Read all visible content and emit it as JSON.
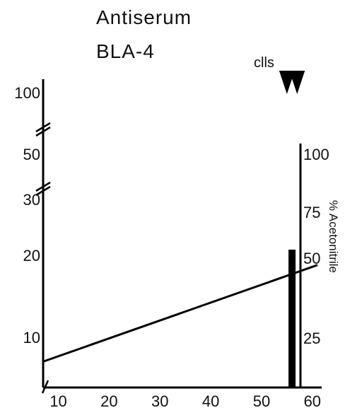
{
  "chart_data": {
    "type": "line",
    "title_lines": [
      "Antiserum",
      "BLA-4"
    ],
    "xlabel": "",
    "x_ticks": [
      "10",
      "20",
      "30",
      "40",
      "50",
      "60"
    ],
    "xlim": [
      7,
      61
    ],
    "y_left_ticks": [
      "100",
      "50",
      "30",
      "20",
      "10"
    ],
    "y_left_scale": "broken",
    "y_right_ticks": [
      "100",
      "75",
      "50",
      "25"
    ],
    "y_right_label": "% Acetonitrile",
    "ylim_right": [
      0,
      100
    ],
    "gradient": {
      "name": "% Acetonitrile",
      "axis": "right",
      "x": [
        7,
        61
      ],
      "y": [
        11,
        52
      ]
    },
    "peak": {
      "x": 56,
      "height_left_axis": 21
    },
    "marker_label": "clls",
    "marker_x": [
      55,
      57
    ]
  }
}
